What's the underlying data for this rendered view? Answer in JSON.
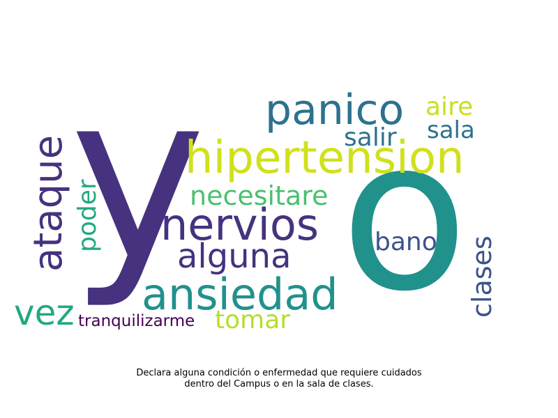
{
  "wordcloud": {
    "words": [
      {
        "text": "y",
        "color": "#46327e"
      },
      {
        "text": "o",
        "color": "#21918c"
      },
      {
        "text": "panico",
        "color": "#2c728e"
      },
      {
        "text": "aire",
        "color": "#c8e020"
      },
      {
        "text": "salir",
        "color": "#2c728e"
      },
      {
        "text": "sala",
        "color": "#2c728e"
      },
      {
        "text": "hipertension",
        "color": "#d0e11c"
      },
      {
        "text": "ataque",
        "color": "#46327e"
      },
      {
        "text": "necesitare",
        "color": "#4ac16d"
      },
      {
        "text": "poder",
        "color": "#22a884"
      },
      {
        "text": "nervios",
        "color": "#46327e"
      },
      {
        "text": "alguna",
        "color": "#46327e"
      },
      {
        "text": "bano",
        "color": "#3b528b"
      },
      {
        "text": "clases",
        "color": "#3b528b"
      },
      {
        "text": "ansiedad",
        "color": "#21918c"
      },
      {
        "text": "vez",
        "color": "#22a884"
      },
      {
        "text": "tranquilizarme",
        "color": "#440154"
      },
      {
        "text": "tomar",
        "color": "#b5de2b"
      }
    ]
  },
  "caption": {
    "line1": "Declara alguna condición o enfermedad que requiere cuidados",
    "line2": "dentro del Campus o en la sala de clases."
  }
}
